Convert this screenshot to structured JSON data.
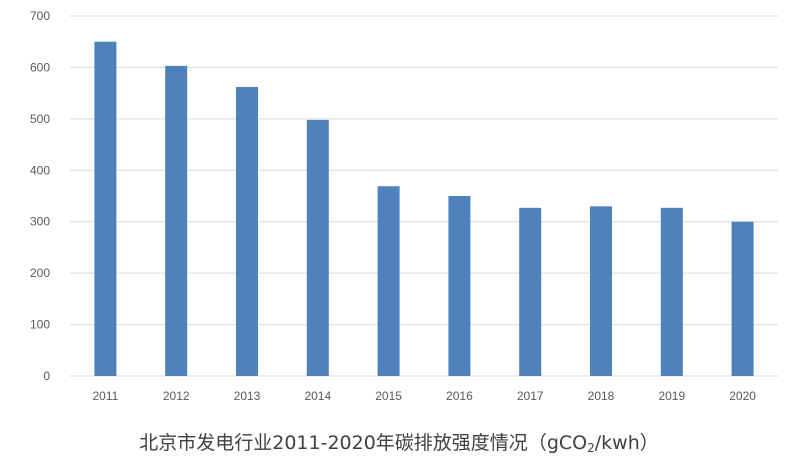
{
  "chart_data": {
    "type": "bar",
    "title": "北京市发电行业2011-2020年碳排放强度情况",
    "unit_open": "（gCO",
    "unit_sub": "2",
    "unit_close": "/kwh）",
    "categories": [
      "2011",
      "2012",
      "2013",
      "2014",
      "2015",
      "2016",
      "2017",
      "2018",
      "2019",
      "2020"
    ],
    "series": [
      {
        "values": [
          650,
          603,
          562,
          498,
          369,
          350,
          327,
          330,
          327,
          300
        ],
        "color": "#4f81bd"
      }
    ],
    "ylim": [
      0,
      700
    ],
    "yticks": [
      "0",
      "100",
      "200",
      "300",
      "400",
      "500",
      "600",
      "700"
    ],
    "grid": true,
    "legend": "none"
  }
}
